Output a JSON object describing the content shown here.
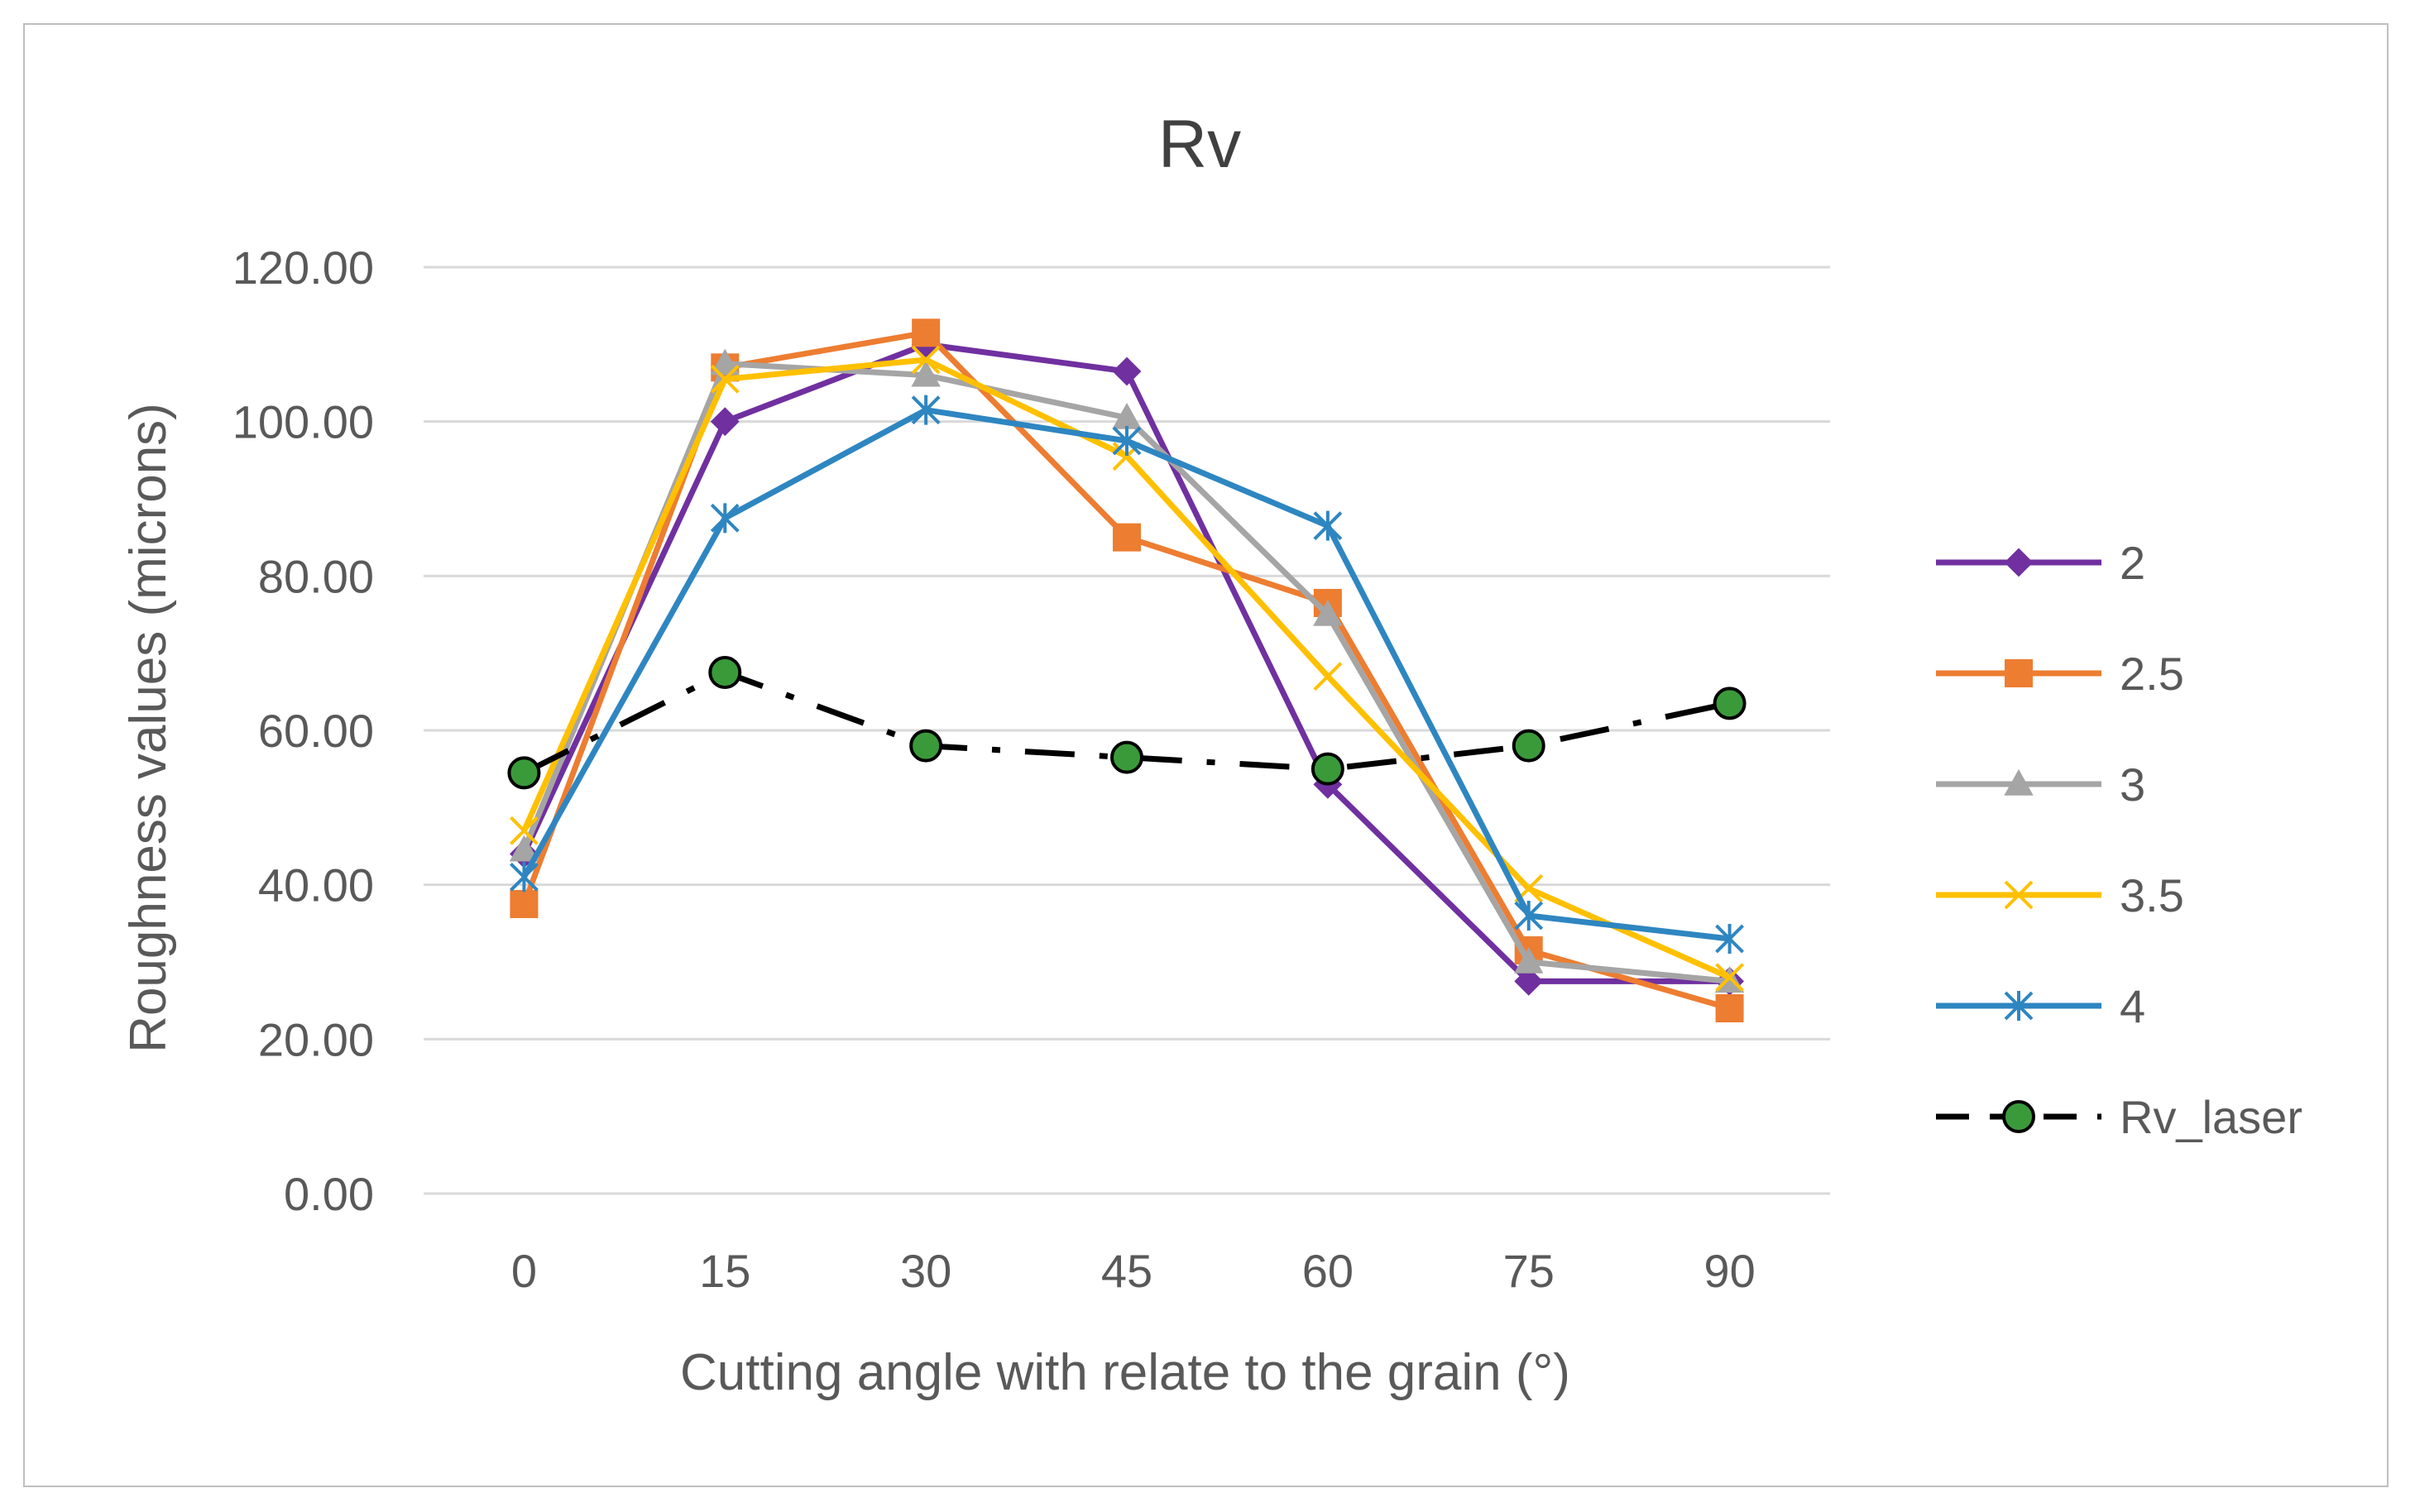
{
  "chart_data": {
    "type": "line",
    "title": "Rv",
    "xlabel": "Cutting angle with relate to the grain (°)",
    "ylabel": "Roughness values (microns)",
    "categories": [
      "0",
      "15",
      "30",
      "45",
      "60",
      "75",
      "90"
    ],
    "ylim": [
      0,
      120
    ],
    "yticks": [
      "0.00",
      "20.00",
      "40.00",
      "60.00",
      "80.00",
      "100.00",
      "120.00"
    ],
    "ytick_values": [
      0,
      20,
      40,
      60,
      80,
      100,
      120
    ],
    "grid": true,
    "legend_position": "right",
    "series": [
      {
        "name": "2",
        "color": "#7030A0",
        "marker": "diamond",
        "dash": "solid",
        "values": [
          44,
          100,
          110,
          106.5,
          53,
          27.5,
          27.5
        ]
      },
      {
        "name": "2.5",
        "color": "#ED7D31",
        "marker": "square",
        "dash": "solid",
        "values": [
          37.5,
          107,
          111.5,
          85,
          76.5,
          31.5,
          24
        ]
      },
      {
        "name": "3",
        "color": "#A5A5A5",
        "marker": "triangle",
        "dash": "solid",
        "values": [
          44.5,
          107.5,
          106,
          100.5,
          75,
          30,
          27.5
        ]
      },
      {
        "name": "3.5",
        "color": "#FFC000",
        "marker": "x",
        "dash": "solid",
        "values": [
          47,
          105.5,
          108,
          95.5,
          67,
          39.5,
          28
        ]
      },
      {
        "name": "4",
        "color": "#2E86C1",
        "marker": "star",
        "dash": "solid",
        "values": [
          41,
          87.5,
          101.5,
          97.5,
          86.5,
          36,
          33
        ]
      },
      {
        "name": "Rv_laser",
        "color": "#000000",
        "marker": "circle",
        "marker_fill": "#3A9A3A",
        "dash": "dashdot",
        "values": [
          54.5,
          67.5,
          58,
          56.5,
          55,
          58,
          63.5
        ]
      }
    ]
  }
}
